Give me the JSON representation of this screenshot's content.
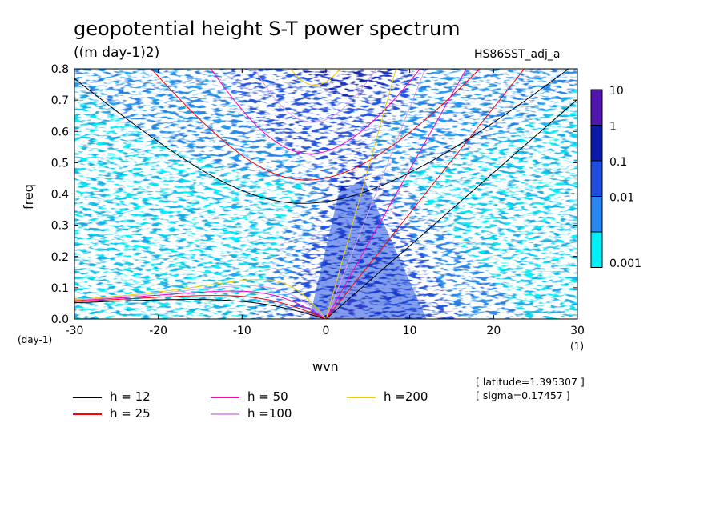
{
  "chart_data": {
    "type": "heatmap",
    "title": "geopotential height S-T power spectrum",
    "subtitle": "((m day-1)2)",
    "run_name": "HS86SST_adj_a",
    "xlabel": "wvn",
    "ylabel": "freq",
    "x_unit": "(1)",
    "y_unit": "(day-1)",
    "xlim": [
      -30,
      30
    ],
    "ylim": [
      0,
      0.8
    ],
    "x_ticks": [
      "-30",
      "-20",
      "-10",
      "0",
      "10",
      "20",
      "30"
    ],
    "y_ticks": [
      "0.0",
      "0.1",
      "0.2",
      "0.3",
      "0.4",
      "0.5",
      "0.6",
      "0.7",
      "0.8"
    ],
    "colorbar": {
      "levels": [
        "10",
        "1",
        "0.1",
        "0.01",
        "0.001"
      ],
      "colors": [
        "#5216b0",
        "#0a1aa8",
        "#1f4ee0",
        "#2a86f0",
        "#00f0f8"
      ],
      "below_color": "#ffffff"
    },
    "legend": [
      {
        "label": "h = 12",
        "color": "#000000",
        "h": 12
      },
      {
        "label": "h = 25",
        "color": "#ff0000",
        "h": 25
      },
      {
        "label": "h = 50",
        "color": "#ff00c0",
        "h": 50
      },
      {
        "label": "h =100",
        "color": "#e0a0e8",
        "h": 100
      },
      {
        "label": "h =200",
        "color": "#f0d000",
        "h": 200
      }
    ],
    "annotations": [
      "[ latitude=1.395307 ]",
      "[ sigma=0.17457 ]"
    ]
  }
}
